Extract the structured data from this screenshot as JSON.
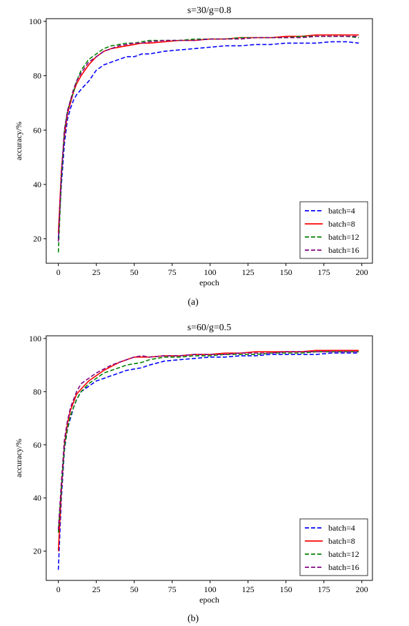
{
  "colors": {
    "batch4": "#0000ff",
    "batch8": "#ff0000",
    "batch12": "#008000",
    "batch16": "#800080"
  },
  "captions": [
    "(a)",
    "(b)"
  ],
  "chart_data": [
    {
      "type": "line",
      "title": "s=30/g=0.8",
      "xlabel": "epoch",
      "ylabel": "accuracy/%",
      "xlim": [
        -8,
        207
      ],
      "ylim": [
        11,
        101
      ],
      "xticks": [
        0,
        25,
        50,
        75,
        100,
        125,
        150,
        175,
        200
      ],
      "yticks": [
        20,
        40,
        60,
        80,
        100
      ],
      "legend": "lower-right",
      "grid": false,
      "x": [
        0,
        2,
        4,
        6,
        8,
        10,
        12,
        15,
        20,
        25,
        30,
        35,
        40,
        45,
        50,
        55,
        60,
        70,
        80,
        90,
        100,
        110,
        120,
        130,
        140,
        150,
        160,
        170,
        180,
        190,
        198
      ],
      "series": [
        {
          "name": "batch=4",
          "style": "dashed",
          "color_key": "batch4",
          "values": [
            20,
            40,
            55,
            64,
            68,
            71,
            73,
            75,
            78,
            82,
            84,
            85,
            86,
            87,
            87,
            88,
            88,
            89,
            89.5,
            90,
            90.5,
            91,
            91,
            91.5,
            91.5,
            92,
            92,
            92,
            92.5,
            92.5,
            92
          ]
        },
        {
          "name": "batch=8",
          "style": "solid",
          "color_key": "batch8",
          "values": [
            22,
            45,
            58,
            66,
            70,
            74,
            77,
            80,
            84,
            87,
            89,
            90,
            90.5,
            91,
            91.5,
            92,
            92,
            92.5,
            93,
            93,
            93.5,
            93.5,
            94,
            94,
            94,
            94.5,
            94.5,
            95,
            95,
            95,
            95
          ]
        },
        {
          "name": "batch=12",
          "style": "dashed",
          "color_key": "batch12",
          "values": [
            15,
            42,
            60,
            67,
            71,
            74,
            78,
            82,
            86,
            88,
            90,
            91,
            91.5,
            92,
            92,
            92.5,
            93,
            93,
            93,
            93.5,
            93.5,
            93.5,
            94,
            94,
            94,
            94,
            94.5,
            94.5,
            94.5,
            94.5,
            94
          ]
        },
        {
          "name": "batch=16",
          "style": "dashed",
          "color_key": "batch16",
          "values": [
            19,
            44,
            60,
            67,
            71,
            75,
            78,
            81,
            85,
            87,
            89,
            90,
            91,
            91.5,
            92,
            92,
            92.5,
            93,
            93,
            93,
            93.5,
            93.5,
            93.5,
            94,
            94,
            94,
            94,
            94.5,
            94.5,
            94.5,
            94.5
          ]
        }
      ]
    },
    {
      "type": "line",
      "title": "s=60/g=0.5",
      "xlabel": "epoch",
      "ylabel": "accuracy/%",
      "xlim": [
        -8,
        207
      ],
      "ylim": [
        9,
        101
      ],
      "xticks": [
        0,
        25,
        50,
        75,
        100,
        125,
        150,
        175,
        200
      ],
      "yticks": [
        20,
        40,
        60,
        80,
        100
      ],
      "legend": "lower-right",
      "grid": false,
      "x": [
        0,
        2,
        4,
        6,
        8,
        10,
        12,
        15,
        20,
        25,
        30,
        35,
        40,
        45,
        50,
        55,
        60,
        70,
        80,
        90,
        100,
        110,
        120,
        130,
        140,
        150,
        160,
        170,
        180,
        190,
        198
      ],
      "series": [
        {
          "name": "batch=4",
          "style": "dashed",
          "color_key": "batch4",
          "values": [
            13,
            40,
            58,
            66,
            70,
            74,
            77,
            80,
            82,
            84,
            85,
            86,
            87,
            88,
            88.5,
            89,
            90,
            91.5,
            92,
            92.5,
            93,
            93,
            93.5,
            93.5,
            94,
            94,
            94,
            94,
            94.5,
            94.5,
            94.5
          ]
        },
        {
          "name": "batch=8",
          "style": "solid",
          "color_key": "batch8",
          "values": [
            20,
            43,
            60,
            68,
            73,
            76,
            79,
            81,
            84,
            86,
            88,
            89.5,
            91,
            92,
            93,
            93,
            93,
            93.5,
            93.5,
            94,
            94,
            94.5,
            94.5,
            95,
            95,
            95,
            95,
            95.5,
            95.5,
            95.5,
            95.5
          ]
        },
        {
          "name": "batch=12",
          "style": "dashed",
          "color_key": "batch12",
          "values": [
            27,
            44,
            59,
            66,
            71,
            74,
            77,
            80,
            83,
            85,
            87,
            88,
            89,
            90,
            90.5,
            91,
            92,
            93,
            93,
            93.5,
            93.5,
            94,
            94,
            94,
            94.5,
            94.5,
            94.5,
            95,
            95,
            95,
            95
          ]
        },
        {
          "name": "batch=16",
          "style": "dashed",
          "color_key": "batch16",
          "values": [
            28,
            46,
            62,
            69,
            74,
            77,
            80,
            83,
            85,
            87,
            88.5,
            90,
            91,
            92,
            93,
            93.5,
            93,
            93.5,
            93.5,
            94,
            94,
            94,
            94.5,
            94.5,
            94.5,
            95,
            95,
            95,
            95,
            95,
            95
          ]
        }
      ]
    }
  ]
}
